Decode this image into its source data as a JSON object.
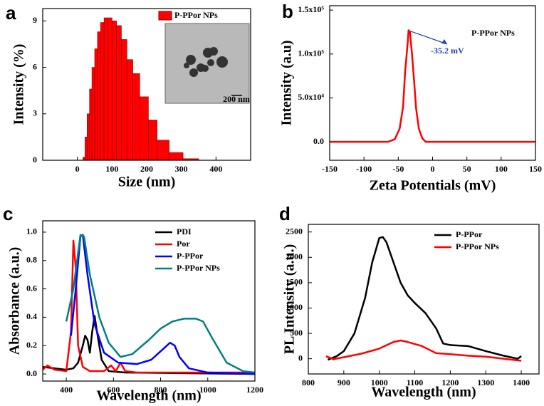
{
  "chart_data": [
    {
      "type": "histogram",
      "panel_label": "a",
      "x_label": "Size (nm)",
      "y_label": "Intensity (%)",
      "bins": [
        16,
        22,
        28,
        35,
        42,
        50,
        58,
        67,
        77,
        88,
        100,
        113,
        127,
        143,
        160,
        180,
        205,
        230,
        265,
        305,
        350
      ],
      "series": [
        {
          "name": "P-PPor NPs",
          "color": "#ff0000",
          "values": [
            0.2,
            1.5,
            3.0,
            4.6,
            6.0,
            7.2,
            8.3,
            8.9,
            9.2,
            9.2,
            9.0,
            8.7,
            7.8,
            6.5,
            5.6,
            4.1,
            2.6,
            1.3,
            0.5,
            0.1
          ]
        }
      ],
      "xlim": [
        -100,
        500
      ],
      "xticks": [
        0,
        100,
        200,
        300,
        400
      ],
      "ylim": [
        0,
        9.8
      ],
      "yticks": [
        0,
        3,
        6,
        9
      ],
      "inset_scale_label": "200 nm",
      "legend": "upper right",
      "grid": false
    },
    {
      "type": "line",
      "panel_label": "b",
      "x_label": "Zeta Potentials (mV)",
      "y_label": "Intensity (a.u)",
      "series": [
        {
          "name": "P-PPor NPs",
          "color": "#ff0000",
          "x": [
            -150,
            -65,
            -55,
            -48,
            -43,
            -40,
            -36,
            -35,
            -33,
            -30,
            -27,
            -24,
            -20,
            -15,
            -10,
            150
          ],
          "values": [
            0,
            0,
            3000,
            15000,
            40000,
            80000,
            115000,
            127000,
            125000,
            100000,
            70000,
            38000,
            15000,
            4000,
            0,
            0
          ]
        }
      ],
      "annotations": [
        "P-PPor NPs",
        "-35.2 mV"
      ],
      "xlim": [
        -150,
        150
      ],
      "xticks": [
        -150,
        -100,
        -50,
        0,
        50,
        100,
        150
      ],
      "ylim": [
        -21000,
        155000
      ],
      "yticks": [
        {
          "value": 0,
          "label": "0.0"
        },
        {
          "value": 50000,
          "label": "5.0x10⁴"
        },
        {
          "value": 100000,
          "label": "1.0x10⁵"
        },
        {
          "value": 150000,
          "label": "1.5x10⁵"
        }
      ],
      "grid": false
    },
    {
      "type": "line",
      "panel_label": "c",
      "x_label": "Wavelength (nm)",
      "y_label": "Absorbance (a.u.)",
      "series": [
        {
          "name": "PDI",
          "color": "#000000",
          "x": [
            300,
            350,
            400,
            430,
            450,
            470,
            480,
            490,
            500,
            510,
            520,
            530,
            550,
            580,
            650,
            1200
          ],
          "values": [
            0.05,
            0.04,
            0.03,
            0.04,
            0.08,
            0.2,
            0.27,
            0.24,
            0.15,
            0.3,
            0.41,
            0.3,
            0.1,
            0.02,
            0.01,
            0
          ]
        },
        {
          "name": "Por",
          "color": "#ff0000",
          "x": [
            300,
            320,
            350,
            400,
            420,
            430,
            440,
            450,
            470,
            500,
            560,
            590,
            610,
            630,
            650,
            700,
            1200
          ],
          "values": [
            0.03,
            0.06,
            0.03,
            0.02,
            0.3,
            0.94,
            0.75,
            0.2,
            0.05,
            0.02,
            0.02,
            0.06,
            0.02,
            0.08,
            0.02,
            0.01,
            0.01
          ]
        },
        {
          "name": "P-PPor",
          "color": "#0000ff",
          "x": [
            420,
            440,
            460,
            470,
            490,
            520,
            560,
            620,
            700,
            760,
            800,
            840,
            860,
            880,
            920,
            1000,
            1200
          ],
          "values": [
            0.27,
            0.6,
            0.97,
            0.98,
            0.7,
            0.35,
            0.15,
            0.08,
            0.07,
            0.1,
            0.16,
            0.22,
            0.2,
            0.12,
            0.04,
            0.01,
            0
          ]
        },
        {
          "name": "P-PPor NPs",
          "color": "#008080",
          "x": [
            400,
            430,
            460,
            475,
            500,
            540,
            580,
            630,
            680,
            750,
            800,
            850,
            900,
            950,
            980,
            1020,
            1080,
            1150,
            1200
          ],
          "values": [
            0.37,
            0.6,
            0.98,
            0.97,
            0.7,
            0.4,
            0.22,
            0.12,
            0.14,
            0.24,
            0.32,
            0.37,
            0.39,
            0.39,
            0.37,
            0.25,
            0.08,
            0.02,
            0.01
          ]
        }
      ],
      "xlim": [
        300,
        1200
      ],
      "xticks": [
        400,
        600,
        800,
        1000,
        1200
      ],
      "ylim": [
        -0.05,
        1.08
      ],
      "yticks": [
        {
          "value": 0,
          "label": "0.0"
        },
        0.2,
        0.4,
        0.6,
        0.8,
        {
          "value": 1,
          "label": "1.0"
        }
      ],
      "legend": "upper right",
      "grid": false
    },
    {
      "type": "line",
      "panel_label": "d",
      "x_label": "Wavelength (nm)",
      "y_label": "PL Intensity (a.u.)",
      "series": [
        {
          "name": "P-PPor",
          "color": "#000000",
          "x": [
            855,
            880,
            900,
            930,
            960,
            980,
            1000,
            1010,
            1020,
            1040,
            1060,
            1080,
            1100,
            1130,
            1160,
            1180,
            1200,
            1250,
            1300,
            1350,
            1390,
            1400
          ],
          "values": [
            -20,
            50,
            150,
            500,
            1200,
            1900,
            2380,
            2400,
            2300,
            1900,
            1500,
            1250,
            1100,
            900,
            600,
            300,
            270,
            250,
            150,
            60,
            0,
            50
          ]
        },
        {
          "name": "P-PPor NPs",
          "color": "#ff0000",
          "x": [
            850,
            870,
            900,
            950,
            1000,
            1040,
            1060,
            1080,
            1120,
            1160,
            1200,
            1250,
            1300,
            1350,
            1400
          ],
          "values": [
            50,
            -10,
            30,
            100,
            200,
            330,
            360,
            330,
            250,
            110,
            90,
            60,
            40,
            0,
            -40
          ]
        }
      ],
      "xlim": [
        800,
        1450
      ],
      "xticks": [
        800,
        900,
        1000,
        1100,
        1200,
        1300,
        1400
      ],
      "ylim": [
        -300,
        2650
      ],
      "yticks": [
        0,
        500,
        1000,
        1500,
        2000,
        2500
      ],
      "legend": "upper right",
      "grid": false
    }
  ]
}
